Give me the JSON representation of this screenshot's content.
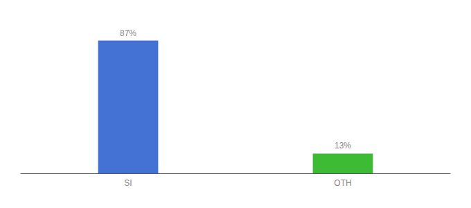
{
  "chart_data": {
    "type": "bar",
    "categories": [
      "SI",
      "OTH"
    ],
    "values": [
      87,
      13
    ],
    "value_labels": [
      "87%",
      "13%"
    ],
    "colors": [
      "#4472d4",
      "#3dbb35"
    ],
    "ylim": [
      0,
      100
    ],
    "grid": false,
    "tick_labels": "x"
  }
}
